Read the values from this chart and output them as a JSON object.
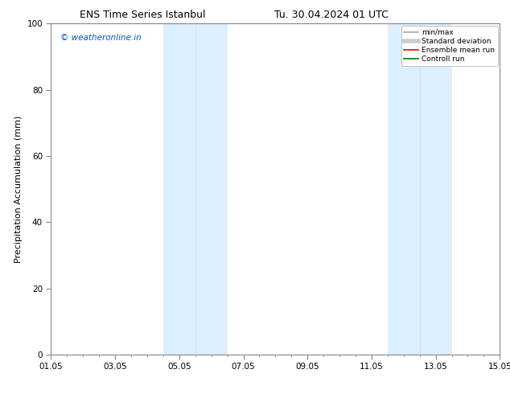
{
  "title_left": "ENS Time Series Istanbul",
  "title_right": "Tu. 30.04.2024 01 UTC",
  "ylabel": "Precipitation Accumulation (mm)",
  "ylim": [
    0,
    100
  ],
  "yticks": [
    0,
    20,
    40,
    60,
    80,
    100
  ],
  "xtick_labels": [
    "01.05",
    "03.05",
    "05.05",
    "07.05",
    "09.05",
    "11.05",
    "13.05",
    "15.05"
  ],
  "xtick_positions": [
    0,
    2,
    4,
    6,
    8,
    10,
    12,
    14
  ],
  "xlim": [
    0,
    14
  ],
  "shaded_regions": [
    {
      "x_start": 3.5,
      "x_end": 4.5,
      "color": "#ddeeff"
    },
    {
      "x_start": 4.5,
      "x_end": 5.5,
      "color": "#ddeeff"
    },
    {
      "x_start": 10.5,
      "x_end": 11.5,
      "color": "#ddeeff"
    },
    {
      "x_start": 11.5,
      "x_end": 12.5,
      "color": "#ddeeff"
    }
  ],
  "shaded_dividers": [
    4.5,
    11.5
  ],
  "watermark_text": "© weatheronline.in",
  "watermark_color": "#0055cc",
  "legend_items": [
    {
      "label": "min/max",
      "color": "#aaaaaa",
      "lw": 1.2
    },
    {
      "label": "Standard deviation",
      "color": "#cccccc",
      "lw": 4
    },
    {
      "label": "Ensemble mean run",
      "color": "red",
      "lw": 1.2
    },
    {
      "label": "Controll run",
      "color": "green",
      "lw": 1.2
    }
  ],
  "bg_color": "#ffffff",
  "title_fontsize": 9,
  "axis_label_fontsize": 8,
  "tick_fontsize": 7.5,
  "watermark_fontsize": 7.5,
  "legend_fontsize": 6.5
}
